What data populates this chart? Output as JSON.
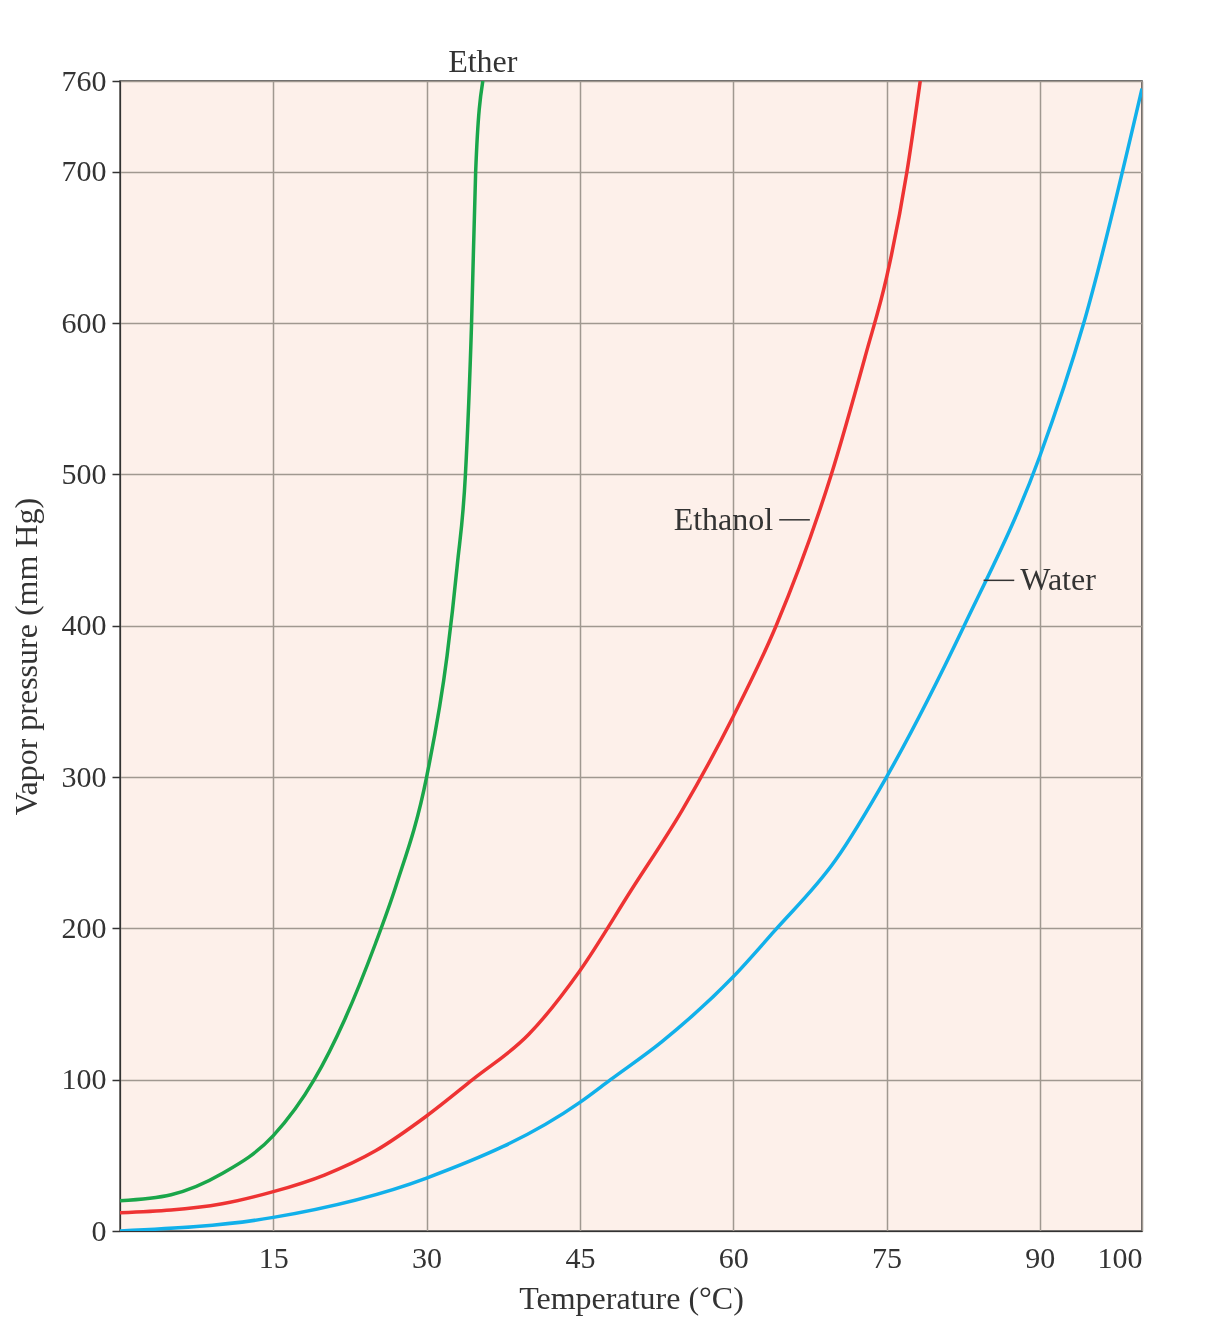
{
  "chart_data": {
    "type": "line",
    "xlabel": "Temperature (°C)",
    "ylabel": "Vapor pressure (mm Hg)",
    "xlim": [
      0,
      100
    ],
    "ylim": [
      0,
      760
    ],
    "xticks": [
      {
        "value": 0,
        "label": null
      },
      15,
      30,
      45,
      60,
      75,
      90,
      100
    ],
    "yticks": [
      0,
      100,
      200,
      300,
      400,
      500,
      600,
      700,
      760
    ],
    "grid": true,
    "legend": false,
    "marker": "none",
    "line_style": "solid",
    "series": [
      {
        "color": "#1aa64a",
        "x": [
          0,
          5,
          10,
          15,
          19,
          22,
          25,
          27,
          30,
          32,
          33,
          33.8,
          34.4,
          34.8,
          35.5
        ],
        "values": [
          20,
          24,
          38,
          63,
          100,
          140,
          190,
          228,
          300,
          380,
          440,
          500,
          600,
          700,
          760
        ]
      },
      {
        "color": "#ee3333",
        "x": [
          0,
          10,
          15,
          20,
          25,
          30,
          34.5,
          40,
          45,
          50,
          55,
          60,
          64.2,
          69.6,
          73,
          75,
          77,
          78.3
        ],
        "values": [
          12,
          18,
          26,
          37,
          53,
          76,
          100,
          130,
          172,
          225,
          278,
          340,
          400,
          500,
          580,
          630,
          700,
          760
        ]
      },
      {
        "color": "#11b0ea",
        "x": [
          0,
          15,
          30,
          45,
          48,
          53,
          60,
          64,
          70,
          75,
          82.6,
          90,
          94.3,
          100
        ],
        "values": [
          0,
          9,
          35,
          85,
          100,
          125,
          168,
          198,
          245,
          300,
          400,
          512,
          600,
          755
        ]
      }
    ],
    "annotations": [
      {
        "text": "Ether",
        "x": 35.5,
        "y": 760
      },
      {
        "text": "Ethanol",
        "x": 67.5,
        "y": 470
      },
      {
        "text": "Water",
        "x": 84.5,
        "y": 430
      }
    ]
  }
}
